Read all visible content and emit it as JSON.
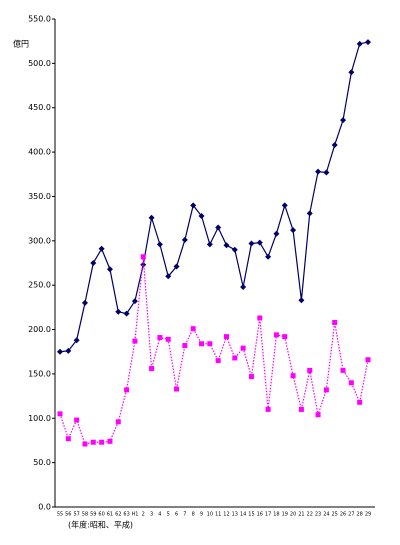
{
  "chart_data": {
    "type": "line",
    "y_unit_label": "億円",
    "x_label": "(年度:昭和、平成)",
    "categories": [
      "55",
      "56",
      "57",
      "58",
      "59",
      "60",
      "61",
      "62",
      "63",
      "H1",
      "2",
      "3",
      "4",
      "5",
      "6",
      "7",
      "8",
      "9",
      "10",
      "11",
      "12",
      "13",
      "14",
      "15",
      "16",
      "17",
      "18",
      "19",
      "20",
      "21",
      "22",
      "23",
      "24",
      "25",
      "26",
      "27",
      "28",
      "29"
    ],
    "series": [
      {
        "color": "#000066",
        "style": "solid",
        "marker": "diamond",
        "values": [
          175,
          176,
          188,
          230,
          275,
          291,
          268,
          220,
          218,
          232,
          273,
          326,
          296,
          260,
          271,
          301,
          340,
          328,
          296,
          315,
          295,
          290,
          248,
          297,
          298,
          282,
          308,
          340,
          312,
          233,
          331,
          378,
          377,
          408,
          436,
          490,
          522,
          524
        ]
      },
      {
        "color": "#ff00ff",
        "style": "dotted",
        "marker": "square",
        "values": [
          105,
          77,
          98,
          71,
          73,
          73,
          74,
          96,
          132,
          187,
          282,
          156,
          191,
          189,
          133,
          182,
          201,
          184,
          184,
          165,
          192,
          168,
          179,
          147,
          213,
          110,
          194,
          192,
          148,
          110,
          154,
          104,
          132,
          208,
          154,
          140,
          118,
          166
        ]
      }
    ],
    "ylim": [
      0,
      550
    ],
    "yticks": [
      {
        "value": 0,
        "label": "0.0"
      },
      {
        "value": 50,
        "label": "50.0"
      },
      {
        "value": 100,
        "label": "100.0"
      },
      {
        "value": 150,
        "label": "150.0"
      },
      {
        "value": 200,
        "label": "200.0"
      },
      {
        "value": 250,
        "label": "250.0"
      },
      {
        "value": 300,
        "label": "300.0"
      },
      {
        "value": 350,
        "label": "350.0"
      },
      {
        "value": 400,
        "label": "400.0"
      },
      {
        "value": 450,
        "label": "450.0"
      },
      {
        "value": 500,
        "label": "500.0"
      },
      {
        "value": 550,
        "label": "550.0"
      }
    ],
    "grid": false
  }
}
